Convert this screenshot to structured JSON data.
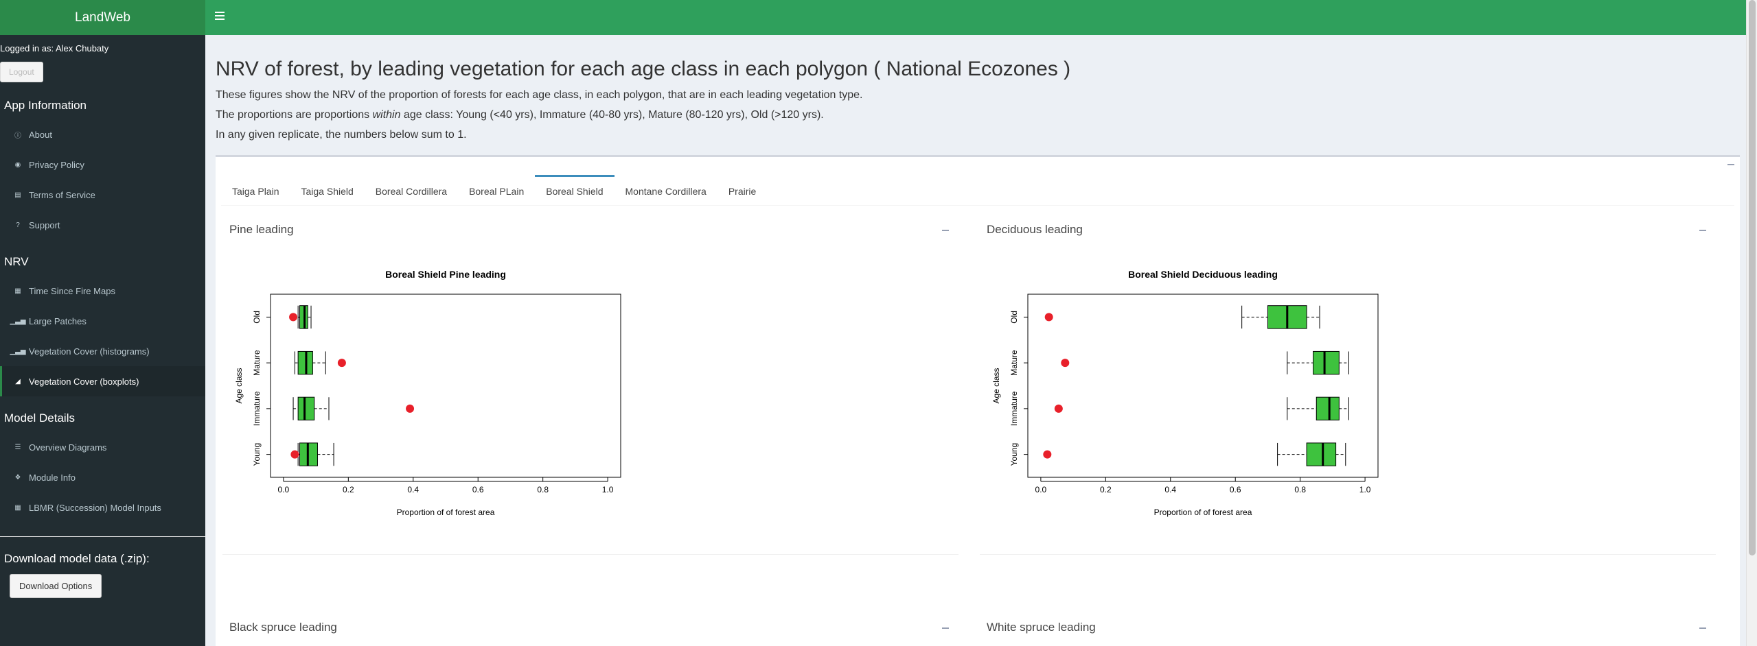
{
  "app": {
    "title": "LandWeb",
    "logged_in_as": "Logged in as: Alex Chubaty",
    "logout_label": "Logout"
  },
  "sidebar": {
    "sections": [
      {
        "header": "App Information",
        "items": [
          {
            "label": "About",
            "icon": "info-circle-icon",
            "active": false
          },
          {
            "label": "Privacy Policy",
            "icon": "eye-icon",
            "active": false
          },
          {
            "label": "Terms of Service",
            "icon": "file-icon",
            "active": false
          },
          {
            "label": "Support",
            "icon": "question-circle-icon",
            "active": false
          }
        ]
      },
      {
        "header": "NRV",
        "items": [
          {
            "label": "Time Since Fire Maps",
            "icon": "map-icon",
            "active": false
          },
          {
            "label": "Large Patches",
            "icon": "bar-chart-icon",
            "active": false
          },
          {
            "label": "Vegetation Cover (histograms)",
            "icon": "bar-chart-icon",
            "active": false
          },
          {
            "label": "Vegetation Cover (boxplots)",
            "icon": "area-chart-icon",
            "active": true
          }
        ]
      },
      {
        "header": "Model Details",
        "items": [
          {
            "label": "Overview Diagrams",
            "icon": "sitemap-icon",
            "active": false
          },
          {
            "label": "Module Info",
            "icon": "puzzle-icon",
            "active": false
          },
          {
            "label": "LBMR (Succession) Model Inputs",
            "icon": "table-icon",
            "active": false
          }
        ]
      }
    ],
    "download_title": "Download model data (.zip):",
    "download_button": "Download Options"
  },
  "page": {
    "title": "NRV of forest, by leading vegetation for each age class in each polygon ( National Ecozones )",
    "desc_line1": "These figures show the NRV of the proportion of forests for each age class, in each polygon, that are in each leading vegetation type.",
    "desc_line2_pre": "The proportions are proportions ",
    "desc_line2_em": "within",
    "desc_line2_post": " age class: Young (<40 yrs), Immature (40-80 yrs), Mature (80-120 yrs), Old (>120 yrs).",
    "desc_line3": "In any given replicate, the numbers below sum to 1."
  },
  "tabs": [
    {
      "label": "Taiga Plain",
      "active": false
    },
    {
      "label": "Taiga Shield",
      "active": false
    },
    {
      "label": "Boreal Cordillera",
      "active": false
    },
    {
      "label": "Boreal PLain",
      "active": false
    },
    {
      "label": "Boreal Shield",
      "active": true
    },
    {
      "label": "Montane Cordillera",
      "active": false
    },
    {
      "label": "Prairie",
      "active": false
    }
  ],
  "panels": {
    "pine": {
      "title": "Pine leading"
    },
    "deciduous": {
      "title": "Deciduous leading"
    },
    "black_spruce": {
      "title": "Black spruce leading"
    },
    "white_spruce": {
      "title": "White spruce leading"
    }
  },
  "colors": {
    "box_fill": "#3ec23e",
    "point": "#e8202a",
    "header_green": "#2fa05c"
  },
  "chart_data": [
    {
      "type": "boxplot",
      "title": "Boreal Shield Pine leading",
      "xlabel": "Proportion of of forest area",
      "ylabel": "Age class",
      "xlim": [
        -0.04,
        1.04
      ],
      "xticks": [
        "0.0",
        "0.2",
        "0.4",
        "0.6",
        "0.8",
        "1.0"
      ],
      "categories": [
        "Old",
        "Mature",
        "Immature",
        "Young"
      ],
      "boxes": [
        {
          "category": "Old",
          "whisker_low": 0.045,
          "q1": 0.05,
          "median": 0.065,
          "q3": 0.075,
          "whisker_high": 0.085
        },
        {
          "category": "Mature",
          "whisker_low": 0.035,
          "q1": 0.045,
          "median": 0.07,
          "q3": 0.09,
          "whisker_high": 0.13
        },
        {
          "category": "Immature",
          "whisker_low": 0.03,
          "q1": 0.045,
          "median": 0.065,
          "q3": 0.095,
          "whisker_high": 0.14
        },
        {
          "category": "Young",
          "whisker_low": 0.045,
          "q1": 0.05,
          "median": 0.075,
          "q3": 0.105,
          "whisker_high": 0.155
        }
      ],
      "points": [
        {
          "category": "Old",
          "value": 0.03
        },
        {
          "category": "Mature",
          "value": 0.18
        },
        {
          "category": "Immature",
          "value": 0.39
        },
        {
          "category": "Young",
          "value": 0.035
        }
      ]
    },
    {
      "type": "boxplot",
      "title": "Boreal Shield Deciduous leading",
      "xlabel": "Proportion of of forest area",
      "ylabel": "Age class",
      "xlim": [
        -0.04,
        1.04
      ],
      "xticks": [
        "0.0",
        "0.2",
        "0.4",
        "0.6",
        "0.8",
        "1.0"
      ],
      "categories": [
        "Old",
        "Mature",
        "Immature",
        "Young"
      ],
      "boxes": [
        {
          "category": "Old",
          "whisker_low": 0.62,
          "q1": 0.7,
          "median": 0.76,
          "q3": 0.82,
          "whisker_high": 0.86
        },
        {
          "category": "Mature",
          "whisker_low": 0.76,
          "q1": 0.84,
          "median": 0.875,
          "q3": 0.92,
          "whisker_high": 0.95
        },
        {
          "category": "Immature",
          "whisker_low": 0.76,
          "q1": 0.85,
          "median": 0.89,
          "q3": 0.92,
          "whisker_high": 0.95
        },
        {
          "category": "Young",
          "whisker_low": 0.73,
          "q1": 0.82,
          "median": 0.87,
          "q3": 0.91,
          "whisker_high": 0.94
        }
      ],
      "points": [
        {
          "category": "Old",
          "value": 0.025
        },
        {
          "category": "Mature",
          "value": 0.075
        },
        {
          "category": "Immature",
          "value": 0.055
        },
        {
          "category": "Young",
          "value": 0.02
        }
      ]
    }
  ]
}
